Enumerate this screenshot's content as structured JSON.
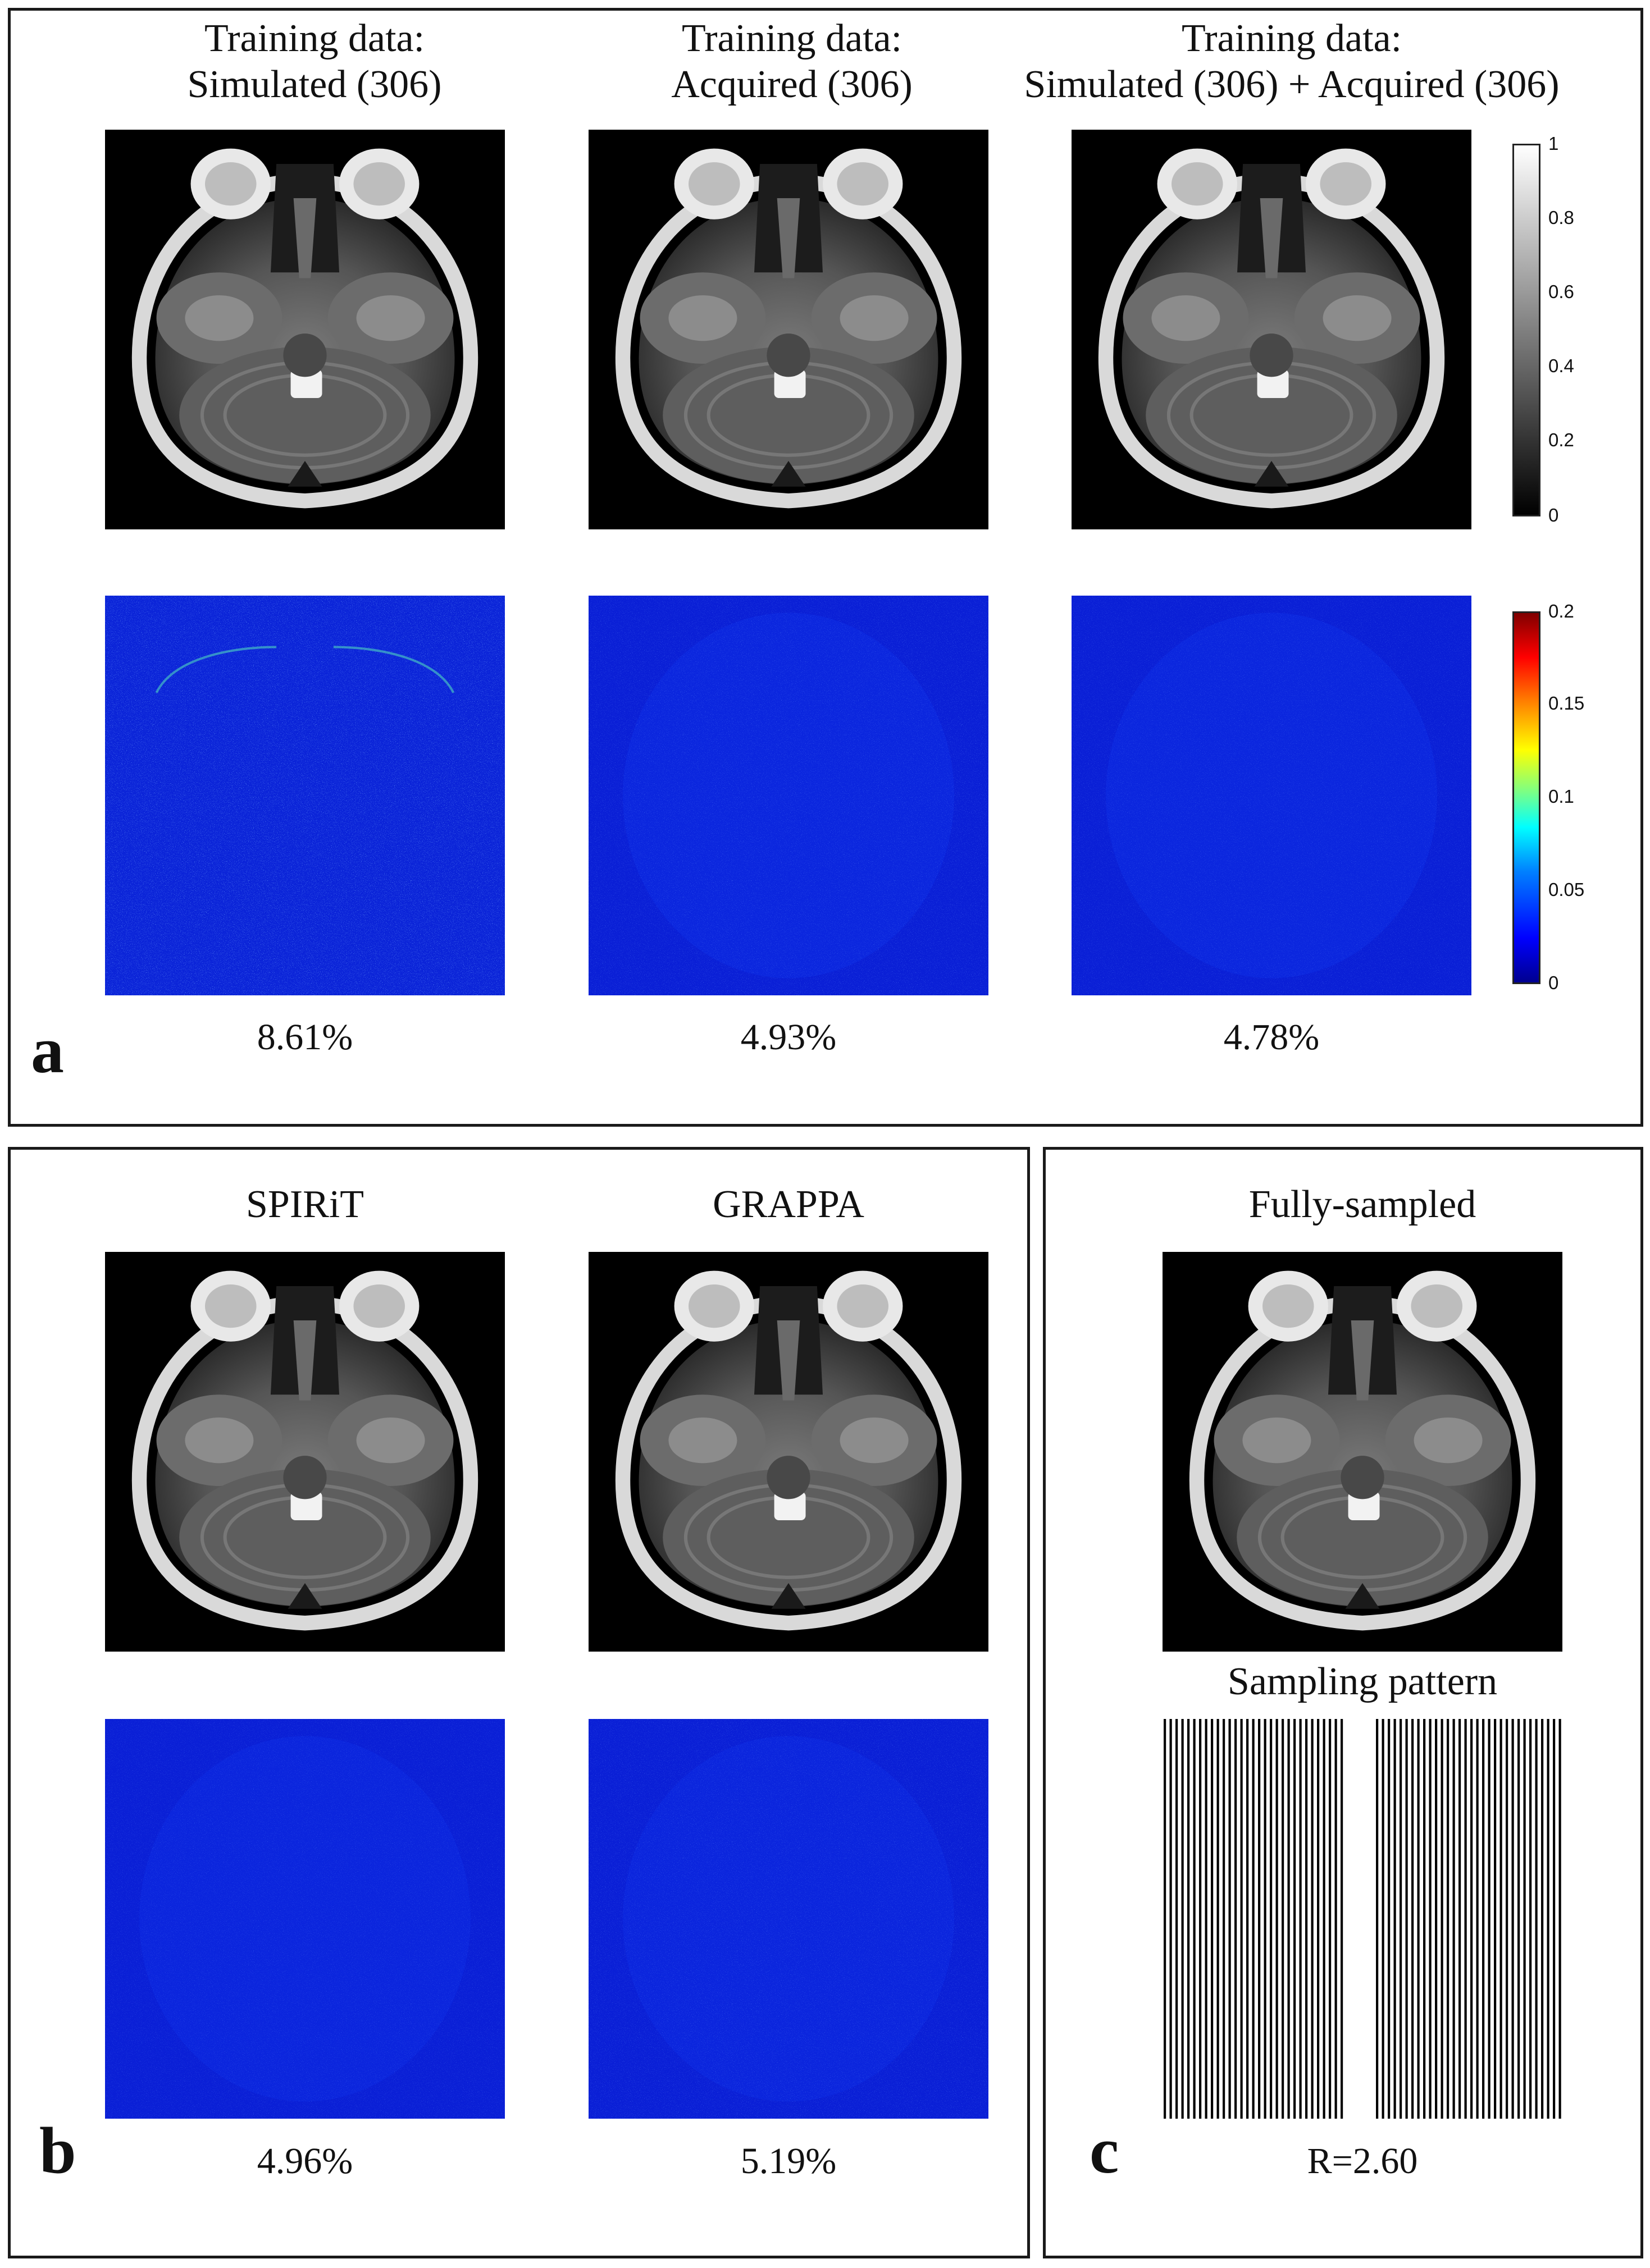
{
  "panel_a": {
    "letter": "a",
    "columns": [
      {
        "title_line1": "Training data:",
        "title_line2": "Simulated (306)",
        "error": "8.61%"
      },
      {
        "title_line1": "Training data:",
        "title_line2": "Acquired (306)",
        "error": "4.93%"
      },
      {
        "title_line1": "Training data:",
        "title_line2": "Simulated (306) + Acquired (306)",
        "error": "4.78%"
      }
    ],
    "gray_colorbar_ticks": [
      "1",
      "0.8",
      "0.6",
      "0.4",
      "0.2",
      "0"
    ],
    "error_colorbar_ticks": [
      "0.2",
      "0.15",
      "0.1",
      "0.05",
      "0"
    ]
  },
  "panel_b": {
    "letter": "b",
    "columns": [
      {
        "title": "SPIRiT",
        "error": "4.96%"
      },
      {
        "title": "GRAPPA",
        "error": "5.19%"
      }
    ]
  },
  "panel_c": {
    "letter": "c",
    "title": "Fully-sampled",
    "pattern_title": "Sampling pattern",
    "acceleration": "R=2.60"
  },
  "colors": {
    "error_map_base": "#0a1fd6",
    "frame": "#1a1a1a"
  }
}
